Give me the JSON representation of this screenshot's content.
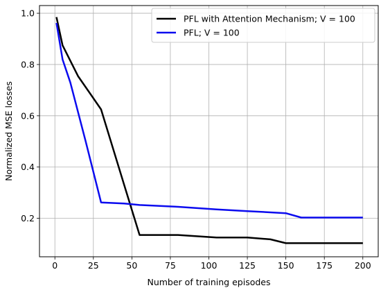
{
  "chart_data": {
    "type": "line",
    "title": "",
    "xlabel": "Number of training episodes",
    "ylabel": "Normalized MSE losses",
    "xlim": [
      -10,
      210
    ],
    "ylim": [
      0.05,
      1.03
    ],
    "xticks": [
      0,
      25,
      50,
      75,
      100,
      125,
      150,
      175,
      200
    ],
    "yticks": [
      0.2,
      0.4,
      0.6,
      0.8,
      1.0
    ],
    "xtick_labels": [
      "0",
      "25",
      "50",
      "75",
      "100",
      "125",
      "150",
      "175",
      "200"
    ],
    "ytick_labels": [
      "0.2",
      "0.4",
      "0.6",
      "0.8",
      "1.0"
    ],
    "grid": true,
    "legend_position": "top-right",
    "series": [
      {
        "name": "PFL with Attention Mechanism; V = 100",
        "color": "#000000",
        "x": [
          1,
          5,
          15,
          30,
          45,
          55,
          80,
          105,
          125,
          140,
          150,
          175,
          200
        ],
        "y": [
          0.985,
          0.875,
          0.755,
          0.625,
          0.33,
          0.135,
          0.135,
          0.125,
          0.125,
          0.118,
          0.103,
          0.103,
          0.103
        ]
      },
      {
        "name": "PFL; V = 100",
        "color": "#0b0bef",
        "x": [
          1,
          5,
          10,
          20,
          30,
          45,
          55,
          80,
          105,
          125,
          150,
          160,
          175,
          200
        ],
        "y": [
          0.962,
          0.82,
          0.73,
          0.5,
          0.262,
          0.258,
          0.252,
          0.245,
          0.235,
          0.228,
          0.22,
          0.203,
          0.203,
          0.203
        ]
      }
    ]
  }
}
